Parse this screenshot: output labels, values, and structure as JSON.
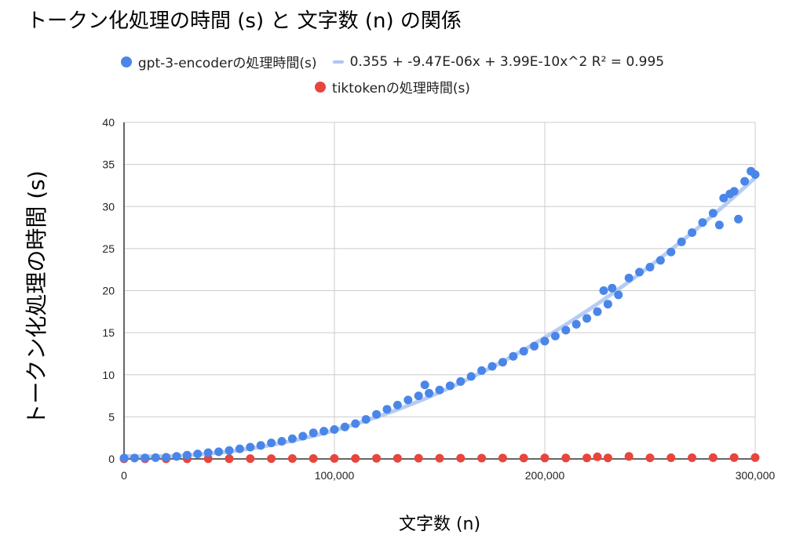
{
  "chart_data": {
    "type": "scatter",
    "title": "トークン化処理の時間 (s) と 文字数 (n) の関係",
    "xlabel": "文字数 (n)",
    "ylabel": "トークン化処理の時間 (s)",
    "xlim": [
      0,
      300000
    ],
    "ylim": [
      0,
      40
    ],
    "x_ticks": [
      0,
      100000,
      200000,
      300000
    ],
    "x_tick_labels": [
      "0",
      "100,000",
      "200,000",
      "300,000"
    ],
    "y_ticks": [
      0,
      5,
      10,
      15,
      20,
      25,
      30,
      35,
      40
    ],
    "y_tick_labels": [
      "0",
      "5",
      "10",
      "15",
      "20",
      "25",
      "30",
      "35",
      "40"
    ],
    "grid": true,
    "legend_position": "top",
    "trendline": {
      "label": "0.355 + -9.47E-06x + 3.99E-10x^2 R² = 0.995",
      "coefficients": [
        0.355,
        -9.47e-06,
        3.99e-10
      ],
      "color": "#aec7f2"
    },
    "series": [
      {
        "name": "gpt-3-encoderの処理時間(s)",
        "color": "#4a86e8",
        "x": [
          0,
          5000,
          10000,
          15000,
          20000,
          25000,
          30000,
          35000,
          40000,
          45000,
          50000,
          55000,
          60000,
          65000,
          70000,
          75000,
          80000,
          85000,
          90000,
          95000,
          100000,
          105000,
          110000,
          115000,
          120000,
          125000,
          130000,
          135000,
          140000,
          143000,
          145000,
          150000,
          155000,
          160000,
          165000,
          170000,
          175000,
          180000,
          185000,
          190000,
          195000,
          200000,
          205000,
          210000,
          215000,
          220000,
          225000,
          228000,
          230000,
          232000,
          235000,
          240000,
          245000,
          250000,
          255000,
          260000,
          265000,
          270000,
          275000,
          280000,
          283000,
          285000,
          288000,
          290000,
          292000,
          295000,
          298000,
          300000
        ],
        "y": [
          0.1,
          0.1,
          0.12,
          0.15,
          0.2,
          0.3,
          0.45,
          0.6,
          0.75,
          0.85,
          1.0,
          1.2,
          1.4,
          1.6,
          1.9,
          2.1,
          2.4,
          2.7,
          3.1,
          3.3,
          3.5,
          3.8,
          4.2,
          4.7,
          5.3,
          5.9,
          6.4,
          7.0,
          7.5,
          8.8,
          7.8,
          8.2,
          8.7,
          9.2,
          9.8,
          10.5,
          11.0,
          11.5,
          12.2,
          12.8,
          13.4,
          14.0,
          14.6,
          15.3,
          16.0,
          16.7,
          17.5,
          20.0,
          18.4,
          20.3,
          19.5,
          21.5,
          22.2,
          22.8,
          23.6,
          24.6,
          25.8,
          26.9,
          28.1,
          29.2,
          27.8,
          31.0,
          31.5,
          31.8,
          28.5,
          33.0,
          34.2,
          33.8
        ]
      },
      {
        "name": "tiktokenの処理時間(s)",
        "color": "#e8453c",
        "x": [
          0,
          10000,
          20000,
          30000,
          40000,
          50000,
          60000,
          70000,
          80000,
          90000,
          100000,
          110000,
          120000,
          130000,
          140000,
          150000,
          160000,
          170000,
          180000,
          190000,
          200000,
          210000,
          220000,
          225000,
          230000,
          240000,
          250000,
          260000,
          270000,
          280000,
          290000,
          300000
        ],
        "y": [
          0.01,
          0.01,
          0.02,
          0.02,
          0.03,
          0.03,
          0.04,
          0.04,
          0.05,
          0.05,
          0.06,
          0.06,
          0.07,
          0.07,
          0.08,
          0.08,
          0.09,
          0.09,
          0.1,
          0.1,
          0.11,
          0.11,
          0.12,
          0.25,
          0.12,
          0.3,
          0.13,
          0.14,
          0.14,
          0.15,
          0.16,
          0.16
        ]
      }
    ]
  }
}
